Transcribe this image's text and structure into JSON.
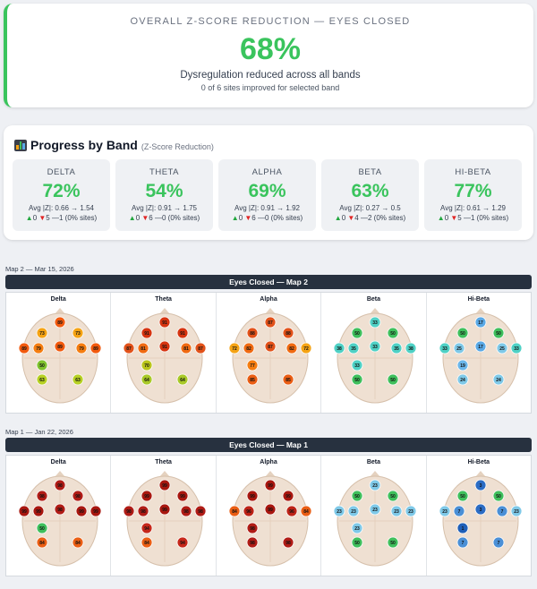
{
  "overall": {
    "title": "OVERALL Z-SCORE REDUCTION — EYES CLOSED",
    "percent": "68%",
    "subtitle": "Dysregulation reduced across all bands",
    "sites_note": "0 of 6 sites improved for selected band",
    "accent_color": "#3ac45d"
  },
  "progress": {
    "title": "Progress by Band",
    "subtitle": "(Z-Score Reduction)",
    "icon": "bar-chart-icon",
    "bands": [
      {
        "name": "DELTA",
        "percent": "72%",
        "avg": "Avg |Z|: 0.66 → 1.54",
        "up": "0",
        "down": "5",
        "same": "—1 (0% sites)"
      },
      {
        "name": "THETA",
        "percent": "54%",
        "avg": "Avg |Z|: 0.91 → 1.75",
        "up": "0",
        "down": "6",
        "same": "—0 (0% sites)"
      },
      {
        "name": "ALPHA",
        "percent": "69%",
        "avg": "Avg |Z|: 0.91 → 1.92",
        "up": "0",
        "down": "6",
        "same": "—0 (0% sites)"
      },
      {
        "name": "BETA",
        "percent": "63%",
        "avg": "Avg |Z|: 0.27 → 0.5",
        "up": "0",
        "down": "4",
        "same": "—2 (0% sites)"
      },
      {
        "name": "HI-BETA",
        "percent": "77%",
        "avg": "Avg |Z|: 0.61 → 1.29",
        "up": "0",
        "down": "5",
        "same": "—1 (0% sites)"
      }
    ]
  },
  "maps": [
    {
      "label": "Map 2 — Mar 15, 2026",
      "bar_title": "Eyes Closed — Map 2",
      "bands": [
        {
          "name": "Delta",
          "sites": [
            [
              "89",
              "#f25a0e"
            ],
            [
              "73",
              "#f5a314"
            ],
            [
              "73",
              "#f5a314"
            ],
            [
              "89",
              "#f25a0e"
            ],
            [
              "79",
              "#f57d10"
            ],
            [
              "89",
              "#f25a0e"
            ],
            [
              "79",
              "#f57d10"
            ],
            [
              "89",
              "#f25a0e"
            ],
            [
              "50",
              "#7fc22e"
            ],
            [
              "63",
              "#b7d024"
            ],
            [
              "63",
              "#b7d024"
            ]
          ]
        },
        {
          "name": "Theta",
          "sites": [
            [
              "91",
              "#d63410"
            ],
            [
              "91",
              "#d63410"
            ],
            [
              "91",
              "#d63410"
            ],
            [
              "87",
              "#e2521a"
            ],
            [
              "81",
              "#f06a12"
            ],
            [
              "91",
              "#d63410"
            ],
            [
              "81",
              "#f06a12"
            ],
            [
              "87",
              "#e2521a"
            ],
            [
              "70",
              "#b9c41c"
            ],
            [
              "64",
              "#a9c928"
            ],
            [
              "64",
              "#a9c928"
            ]
          ]
        },
        {
          "name": "Alpha",
          "sites": [
            [
              "87",
              "#e2521a"
            ],
            [
              "88",
              "#e2521a"
            ],
            [
              "88",
              "#e2521a"
            ],
            [
              "72",
              "#f5a314"
            ],
            [
              "82",
              "#f06a12"
            ],
            [
              "87",
              "#e2521a"
            ],
            [
              "82",
              "#f06a12"
            ],
            [
              "72",
              "#f5a314"
            ],
            [
              "77",
              "#f57d10"
            ],
            [
              "85",
              "#ea5e14"
            ],
            [
              "85",
              "#ea5e14"
            ]
          ]
        },
        {
          "name": "Beta",
          "sites": [
            [
              "33",
              "#4fd1c5"
            ],
            [
              "50",
              "#3fbf5c"
            ],
            [
              "50",
              "#3fbf5c"
            ],
            [
              "38",
              "#4fd1c5"
            ],
            [
              "35",
              "#4fd1c5"
            ],
            [
              "33",
              "#4fd1c5"
            ],
            [
              "35",
              "#4fd1c5"
            ],
            [
              "38",
              "#4fd1c5"
            ],
            [
              "33",
              "#4fd1c5"
            ],
            [
              "50",
              "#3fbf5c"
            ],
            [
              "50",
              "#3fbf5c"
            ]
          ]
        },
        {
          "name": "Hi-Beta",
          "sites": [
            [
              "17",
              "#5aa9e6"
            ],
            [
              "50",
              "#3fbf5c"
            ],
            [
              "50",
              "#3fbf5c"
            ],
            [
              "33",
              "#4fd1c5"
            ],
            [
              "25",
              "#7fc9e8"
            ],
            [
              "17",
              "#5aa9e6"
            ],
            [
              "25",
              "#7fc9e8"
            ],
            [
              "33",
              "#4fd1c5"
            ],
            [
              "19",
              "#6bb6ea"
            ],
            [
              "24",
              "#7fc9e8"
            ],
            [
              "24",
              "#7fc9e8"
            ]
          ]
        }
      ]
    },
    {
      "label": "Map 1 — Jan 22, 2026",
      "bar_title": "Eyes Closed — Map 1",
      "bands": [
        {
          "name": "Delta",
          "sites": [
            [
              "98",
              "#b01c16"
            ],
            [
              "98",
              "#b01c16"
            ],
            [
              "98",
              "#b01c16"
            ],
            [
              "99",
              "#a8170f"
            ],
            [
              "99",
              "#a8170f"
            ],
            [
              "98",
              "#b01c16"
            ],
            [
              "99",
              "#a8170f"
            ],
            [
              "99",
              "#a8170f"
            ],
            [
              "50",
              "#3fbf5c"
            ],
            [
              "84",
              "#ea5e14"
            ],
            [
              "84",
              "#ea5e14"
            ]
          ]
        },
        {
          "name": "Theta",
          "sites": [
            [
              "99",
              "#a8170f"
            ],
            [
              "99",
              "#a8170f"
            ],
            [
              "99",
              "#a8170f"
            ],
            [
              "98",
              "#b01c16"
            ],
            [
              "98",
              "#b01c16"
            ],
            [
              "99",
              "#a8170f"
            ],
            [
              "98",
              "#b01c16"
            ],
            [
              "98",
              "#b01c16"
            ],
            [
              "94",
              "#c6271a"
            ],
            [
              "84",
              "#ea5e14"
            ],
            [
              "94",
              "#c6271a"
            ]
          ]
        },
        {
          "name": "Alpha",
          "sites": [
            [
              "99",
              "#a8170f"
            ],
            [
              "99",
              "#a8170f"
            ],
            [
              "99",
              "#a8170f"
            ],
            [
              "84",
              "#ea5e14"
            ],
            [
              "96",
              "#bd2317"
            ],
            [
              "99",
              "#a8170f"
            ],
            [
              "96",
              "#bd2317"
            ],
            [
              "84",
              "#ea5e14"
            ],
            [
              "98",
              "#b01c16"
            ],
            [
              "98",
              "#b01c16"
            ],
            [
              "98",
              "#b01c16"
            ]
          ]
        },
        {
          "name": "Beta",
          "sites": [
            [
              "23",
              "#7fc9e8"
            ],
            [
              "50",
              "#3fbf5c"
            ],
            [
              "50",
              "#3fbf5c"
            ],
            [
              "23",
              "#7fc9e8"
            ],
            [
              "23",
              "#7fc9e8"
            ],
            [
              "23",
              "#7fc9e8"
            ],
            [
              "23",
              "#7fc9e8"
            ],
            [
              "23",
              "#7fc9e8"
            ],
            [
              "23",
              "#7fc9e8"
            ],
            [
              "50",
              "#3fbf5c"
            ],
            [
              "50",
              "#3fbf5c"
            ]
          ]
        },
        {
          "name": "Hi-Beta",
          "sites": [
            [
              "3",
              "#2b6cc4"
            ],
            [
              "50",
              "#3fbf5c"
            ],
            [
              "50",
              "#3fbf5c"
            ],
            [
              "23",
              "#7fc9e8"
            ],
            [
              "7",
              "#4a8fd6"
            ],
            [
              "3",
              "#2b6cc4"
            ],
            [
              "7",
              "#4a8fd6"
            ],
            [
              "23",
              "#7fc9e8"
            ],
            [
              "1",
              "#1f5fb8"
            ],
            [
              "7",
              "#4a8fd6"
            ],
            [
              "7",
              "#4a8fd6"
            ]
          ]
        }
      ]
    }
  ]
}
